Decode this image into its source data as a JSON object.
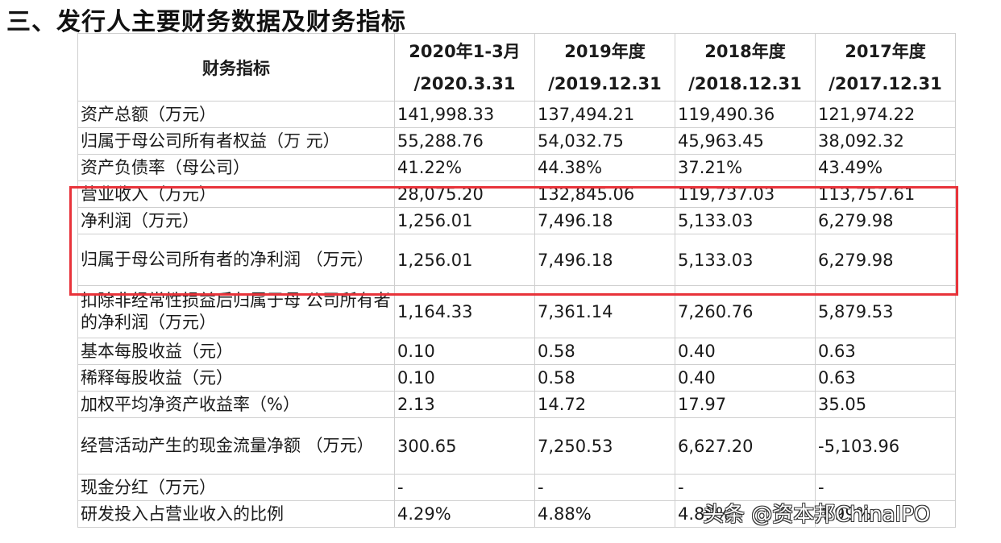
{
  "heading": "三、发行人主要财务数据及财务指标",
  "table": {
    "header_label": "财务指标",
    "columns": [
      {
        "line1": "2020年1-3月",
        "line2": "/2020.3.31"
      },
      {
        "line1": "2019年度",
        "line2": "/2019.12.31"
      },
      {
        "line1": "2018年度",
        "line2": "/2018.12.31"
      },
      {
        "line1": "2017年度",
        "line2": "/2017.12.31"
      }
    ],
    "rows": [
      {
        "label": "资产总额（万元）",
        "values": [
          "141,998.33",
          "137,494.21",
          "119,490.36",
          "121,974.22"
        ]
      },
      {
        "label": "归属于母公司所有者权益（万 元）",
        "values": [
          "55,288.76",
          "54,032.75",
          "45,963.45",
          "38,092.32"
        ]
      },
      {
        "label": "资产负债率（母公司）",
        "values": [
          "41.22%",
          "44.38%",
          "37.21%",
          "43.49%"
        ]
      },
      {
        "label": "营业收入（万元）",
        "values": [
          "28,075.20",
          "132,845.06",
          "119,737.03",
          "113,757.61"
        ]
      },
      {
        "label": "净利润（万元）",
        "values": [
          "1,256.01",
          "7,496.18",
          "5,133.03",
          "6,279.98"
        ]
      },
      {
        "label": "归属于母公司所有者的净利润 （万元）",
        "values": [
          "1,256.01",
          "7,496.18",
          "5,133.03",
          "6,279.98"
        ]
      },
      {
        "label": "扣除非经常性损益后归属于母 公司所有者的净利润（万元）",
        "values": [
          "1,164.33",
          "7,361.14",
          "7,260.76",
          "5,879.53"
        ]
      },
      {
        "label": "基本每股收益（元）",
        "values": [
          "0.10",
          "0.58",
          "0.40",
          "0.63"
        ]
      },
      {
        "label": "稀释每股收益（元）",
        "values": [
          "0.10",
          "0.58",
          "0.40",
          "0.63"
        ]
      },
      {
        "label": "加权平均净资产收益率（%）",
        "values": [
          "2.13",
          "14.72",
          "17.97",
          "35.05"
        ]
      },
      {
        "label": "经营活动产生的现金流量净额 （万元）",
        "values": [
          "300.65",
          "7,250.53",
          "6,627.20",
          "-5,103.96"
        ]
      },
      {
        "label": "现金分红（万元）",
        "values": [
          "-",
          "-",
          "-",
          "-"
        ]
      },
      {
        "label": "研发投入占营业收入的比例",
        "values": [
          "4.29%",
          "4.88%",
          "4.89%",
          "4.99%"
        ]
      }
    ]
  },
  "watermark": "头条 @资本邦ChinaIPO"
}
